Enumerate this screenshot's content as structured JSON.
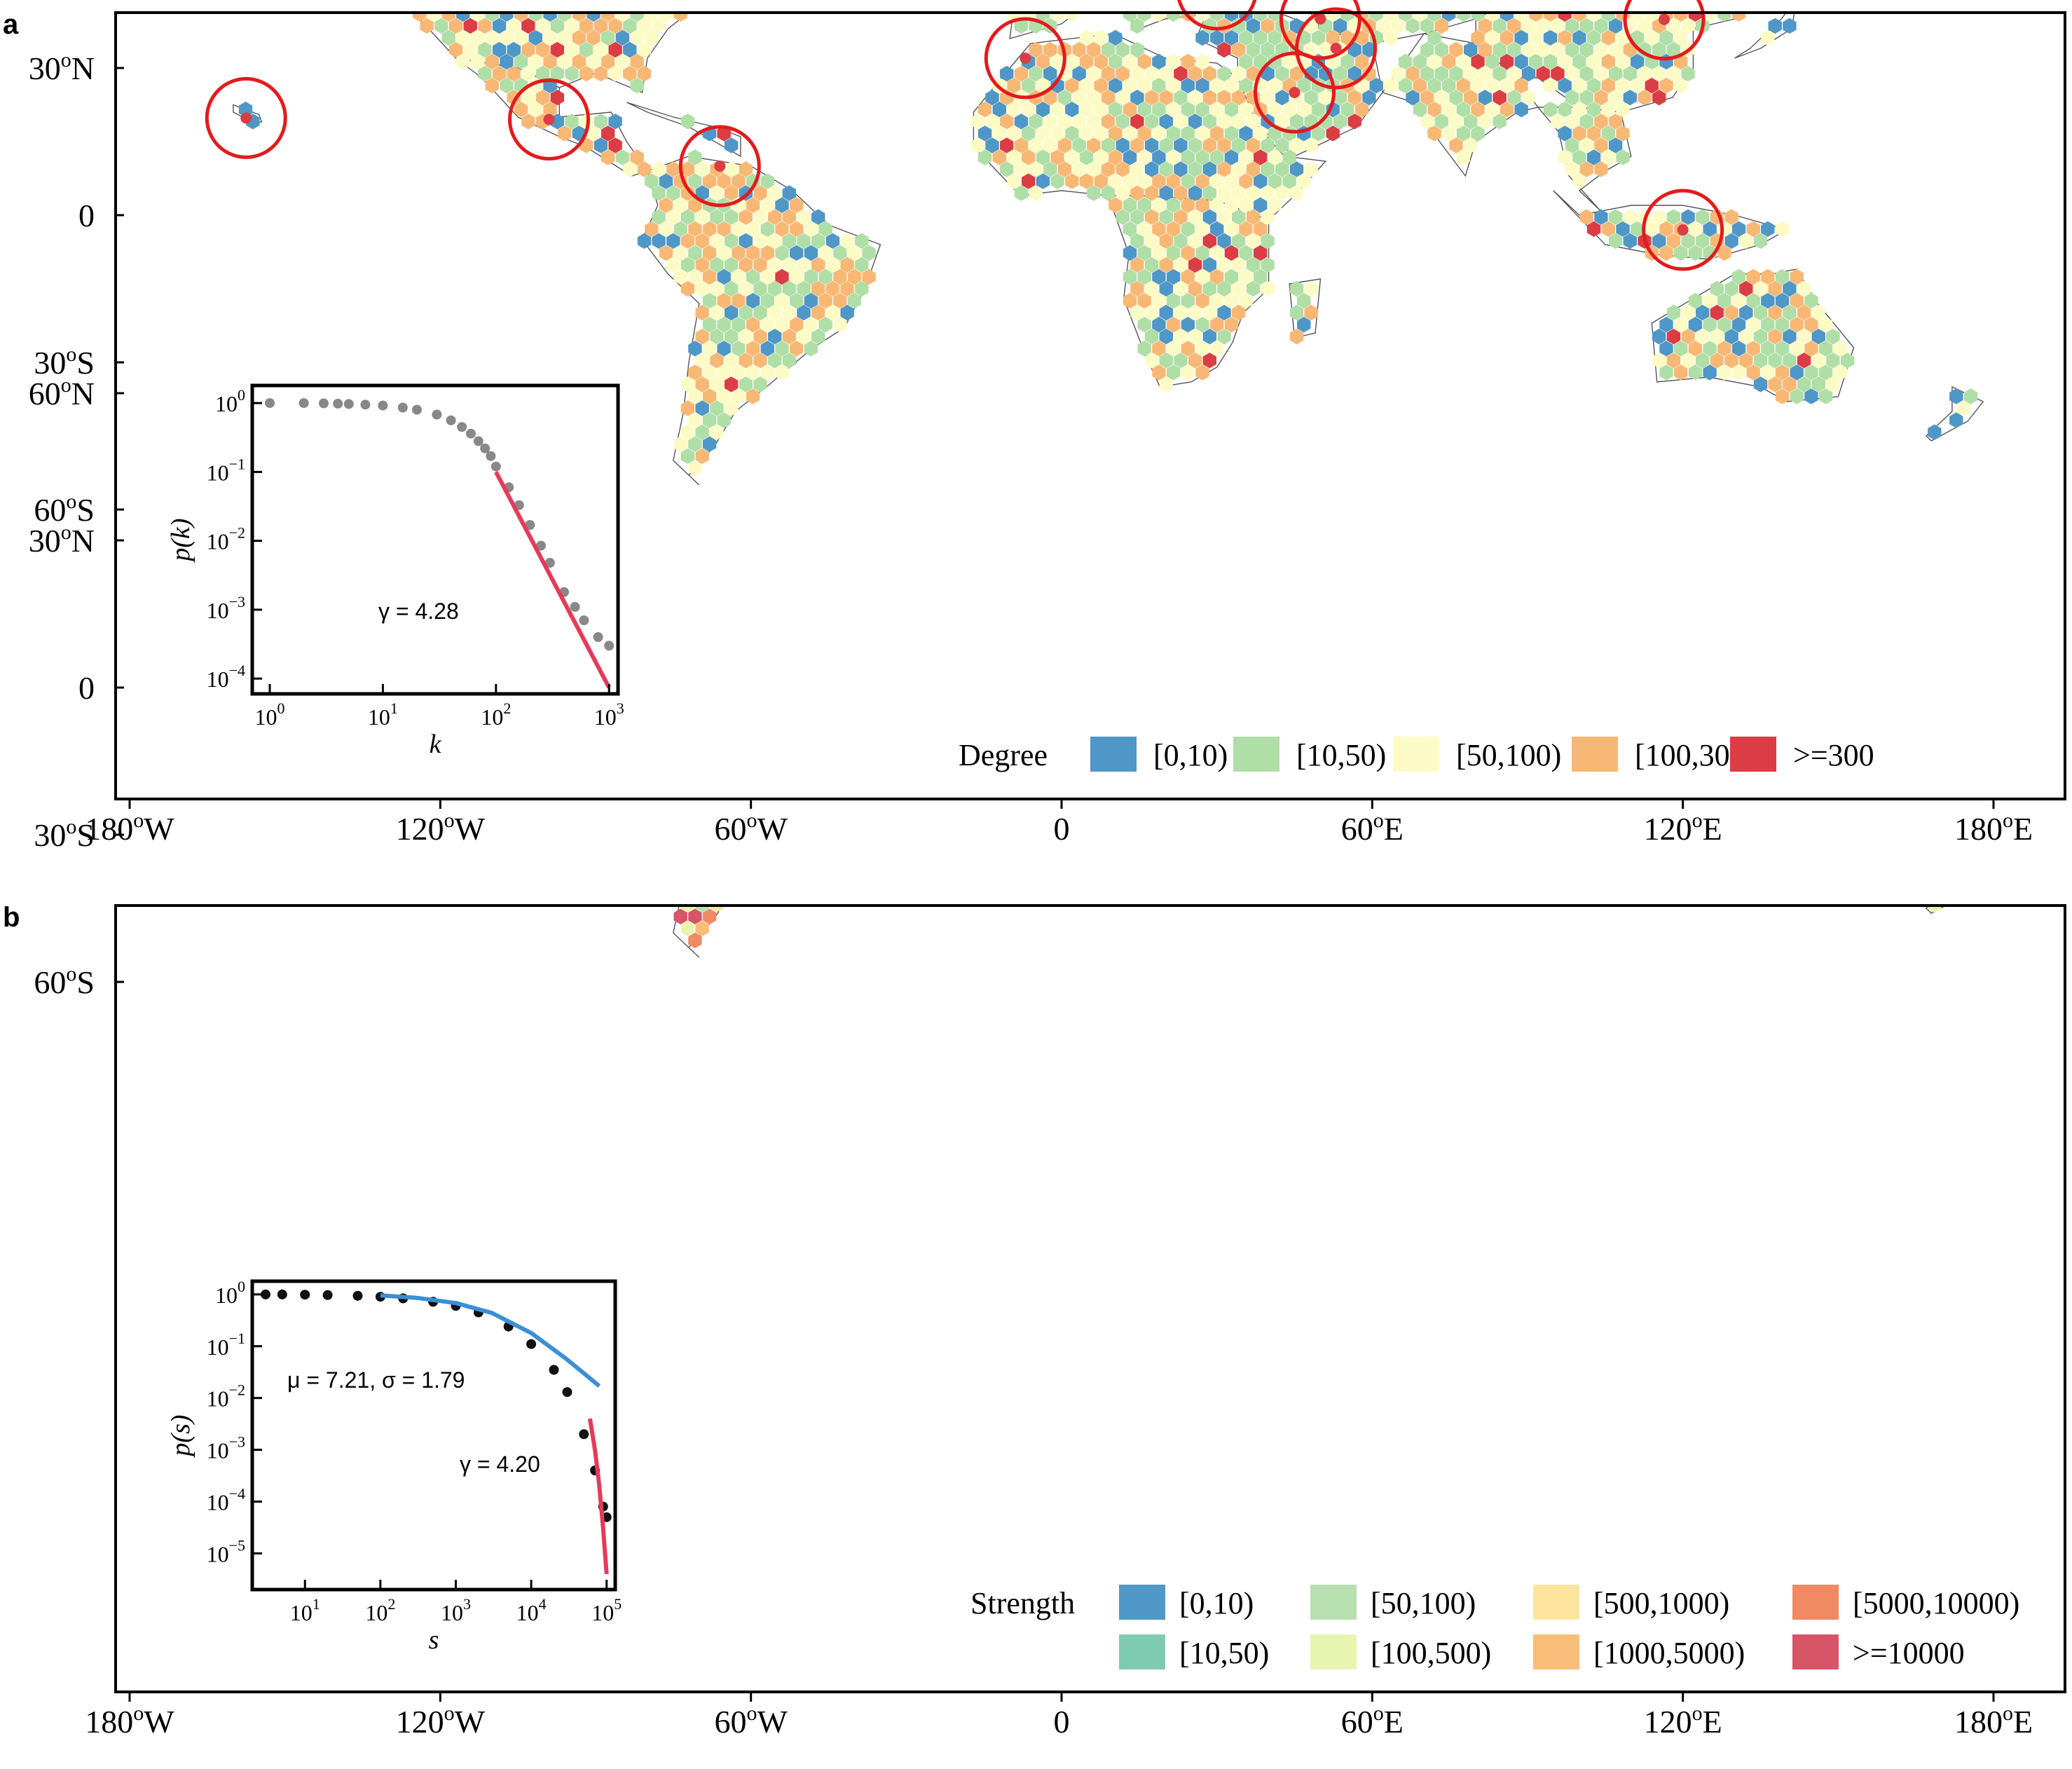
{
  "panels": [
    {
      "letter": "a",
      "lat_ticks": [
        "60",
        "30",
        "0",
        "30",
        "60"
      ],
      "lat_suffix": [
        "N",
        "N",
        "",
        "S",
        "S"
      ],
      "lon_ticks": [
        "180",
        "120",
        "60",
        "0",
        "60",
        "120",
        "180"
      ],
      "lon_suffix": [
        "W",
        "W",
        "W",
        "",
        "E",
        "E",
        "E"
      ],
      "degree_symbol": "o",
      "legend_title": "Degree",
      "legend": [
        {
          "label": "[0,10)",
          "color": "#4f97c7"
        },
        {
          "label": "[10,50)",
          "color": "#b0dea7"
        },
        {
          "label": "[50,100)",
          "color": "#fdfbc5"
        },
        {
          "label": "[100,300)",
          "color": "#f8b875"
        },
        {
          "label": ">=300",
          "color": "#db3d44"
        }
      ],
      "hubs_marked": [
        "Hawaii",
        "Mexico City",
        "Caribbean",
        "Morocco",
        "Moscow region",
        "Ukraine",
        "Caspian",
        "Iran",
        "Arabia",
        "Ural",
        "Beijing",
        "Sulawesi"
      ],
      "inset": {
        "ylabel": "p(k)",
        "xlabel": "k",
        "annotation": "γ = 4.28",
        "x_ticks": [
          "10",
          "10",
          "10",
          "10"
        ],
        "x_exp": [
          "0",
          "1",
          "2",
          "3"
        ],
        "y_ticks": [
          "10",
          "10",
          "10",
          "10",
          "10"
        ],
        "y_exp": [
          "0",
          "−1",
          "−2",
          "−3",
          "−4"
        ]
      }
    },
    {
      "letter": "b",
      "lat_ticks": [
        "60",
        "30",
        "0",
        "30",
        "60"
      ],
      "lat_suffix": [
        "N",
        "N",
        "",
        "S",
        "S"
      ],
      "lon_ticks": [
        "180",
        "120",
        "60",
        "0",
        "60",
        "120",
        "180"
      ],
      "lon_suffix": [
        "W",
        "W",
        "W",
        "",
        "E",
        "E",
        "E"
      ],
      "degree_symbol": "o",
      "legend_title": "Strength",
      "legend": [
        {
          "label": "[0,10)",
          "color": "#4f97c7"
        },
        {
          "label": "[10,50)",
          "color": "#7fcbb1"
        },
        {
          "label": "[50,100)",
          "color": "#b8e0b0"
        },
        {
          "label": "[100,500)",
          "color": "#e8f5b0"
        },
        {
          "label": "[500,1000)",
          "color": "#fde59e"
        },
        {
          "label": "[1000,5000)",
          "color": "#f9bd7a"
        },
        {
          "label": "[5000,10000)",
          "color": "#f08a63"
        },
        {
          "label": ">=10000",
          "color": "#d85467"
        }
      ],
      "inset": {
        "ylabel": "p(s)",
        "xlabel": "s",
        "annotation_1": "μ = 7.21,  σ = 1.79",
        "annotation_2": "γ = 4.20",
        "x_ticks": [
          "10",
          "10",
          "10",
          "10",
          "10"
        ],
        "x_exp": [
          "1",
          "2",
          "3",
          "4",
          "5"
        ],
        "y_ticks": [
          "10",
          "10",
          "10",
          "10",
          "10",
          "10"
        ],
        "y_exp": [
          "0",
          "−1",
          "−2",
          "−3",
          "−4",
          "−5"
        ]
      }
    }
  ],
  "colors": {
    "frame": "#000000",
    "coast": "#555555",
    "circle": "#e41a1c",
    "powerlaw_fit": "#e63a5a",
    "lognormal_fit": "#3a8fd6",
    "points_a": "#888888",
    "points_b": "#111111"
  },
  "chart_data": [
    {
      "type": "scatter",
      "title": "",
      "xlabel": "k",
      "ylabel": "p(k)",
      "x_scale": "log",
      "y_scale": "log",
      "xlim": [
        0.7,
        1200
      ],
      "ylim": [
        6e-05,
        1.8
      ],
      "series": [
        {
          "x": [
            1,
            2,
            3,
            4,
            5,
            7,
            10,
            15,
            20,
            30,
            40,
            50,
            60,
            70,
            80,
            90,
            100,
            130,
            160,
            200,
            250,
            300,
            400,
            500,
            600,
            800,
            1000
          ],
          "y": [
            1.0,
            1.0,
            0.99,
            0.98,
            0.97,
            0.95,
            0.92,
            0.86,
            0.8,
            0.68,
            0.56,
            0.45,
            0.36,
            0.28,
            0.22,
            0.17,
            0.12,
            0.06,
            0.033,
            0.017,
            0.0085,
            0.0048,
            0.0018,
            0.0011,
            0.0007,
            0.0004,
            0.0003
          ]
        },
        {
          "name": "γ = 4.28",
          "x": [
            100,
            1000
          ],
          "y": [
            0.1,
            7.4e-05
          ]
        }
      ]
    },
    {
      "type": "scatter",
      "title": "",
      "xlabel": "s",
      "ylabel": "p(s)",
      "x_scale": "log",
      "y_scale": "log",
      "xlim": [
        2,
        130000
      ],
      "ylim": [
        2e-06,
        1.8
      ],
      "series": [
        {
          "x": [
            3,
            5,
            10,
            20,
            50,
            100,
            200,
            500,
            1000,
            2000,
            5000,
            10000,
            20000,
            30000,
            50000,
            70000,
            90000,
            100000
          ],
          "y": [
            1.0,
            1.0,
            0.99,
            0.97,
            0.94,
            0.9,
            0.84,
            0.72,
            0.6,
            0.45,
            0.24,
            0.11,
            0.035,
            0.013,
            0.002,
            0.0004,
            8e-05,
            5e-05
          ]
        },
        {
          "name": "μ = 7.21,  σ = 1.79",
          "x": [
            100,
            300,
            1000,
            3000,
            10000,
            30000,
            80000
          ],
          "y": [
            0.96,
            0.86,
            0.68,
            0.44,
            0.18,
            0.055,
            0.017
          ]
        },
        {
          "name": "γ = 4.20",
          "x": [
            60000,
            70000,
            80000,
            90000,
            100000
          ],
          "y": [
            0.004,
            0.001,
            0.0002,
            3e-05,
            4e-06
          ]
        }
      ]
    }
  ]
}
